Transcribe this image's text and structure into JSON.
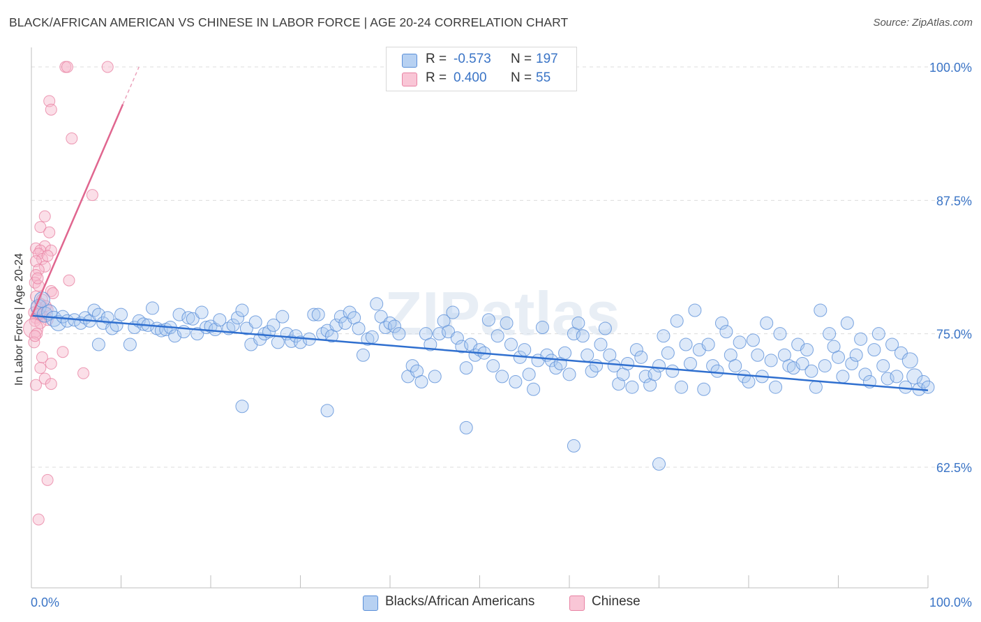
{
  "title": "BLACK/AFRICAN AMERICAN VS CHINESE IN LABOR FORCE | AGE 20-24 CORRELATION CHART",
  "source": "Source: ZipAtlas.com",
  "watermark": "ZIPatlas",
  "colors": {
    "blue_fill": "#a9c8f0",
    "blue_stroke": "#5a8fd8",
    "blue_line": "#2f6fcf",
    "pink_fill": "#f7b9cc",
    "pink_stroke": "#e882a3",
    "pink_line": "#e0668f",
    "axis_text": "#3a74c6"
  },
  "legend": {
    "blue": {
      "r_label": "R =",
      "r_value": "-0.573",
      "n_label": "N =",
      "n_value": "197"
    },
    "pink": {
      "r_label": "R =",
      "r_value": "0.400",
      "n_label": "N =",
      "n_value": "55"
    }
  },
  "bottom_legend": {
    "blue_label": "Blacks/African Americans",
    "pink_label": "Chinese"
  },
  "chart_data": {
    "type": "scatter",
    "title": "BLACK/AFRICAN AMERICAN VS CHINESE IN LABOR FORCE | AGE 20-24 CORRELATION CHART",
    "xlabel": "",
    "ylabel": "In Labor Force | Age 20-24",
    "xlim": [
      0,
      100
    ],
    "ylim": [
      50,
      100
    ],
    "x_tick_labels": [
      "0.0%",
      "100.0%"
    ],
    "y_ticks": [
      62.5,
      75.0,
      87.5,
      100.0
    ],
    "y_tick_labels": [
      "62.5%",
      "75.0%",
      "87.5%",
      "100.0%"
    ],
    "grid": true,
    "series": [
      {
        "name": "Blacks/African Americans",
        "color": "blue",
        "R": -0.573,
        "N": 197,
        "trend": {
          "x": [
            0,
            100
          ],
          "y": [
            76.7,
            69.7
          ]
        },
        "points": [
          [
            0.8,
            77.5
          ],
          [
            1.2,
            78.2
          ],
          [
            1.5,
            76.8
          ],
          [
            2.0,
            77.0
          ],
          [
            2.5,
            76.4
          ],
          [
            3.0,
            76.0
          ],
          [
            3.5,
            76.6
          ],
          [
            4.0,
            76.2
          ],
          [
            4.8,
            76.3
          ],
          [
            5.5,
            76.0
          ],
          [
            6.0,
            76.5
          ],
          [
            6.5,
            76.2
          ],
          [
            7.0,
            77.2
          ],
          [
            7.5,
            76.8
          ],
          [
            8.0,
            76.0
          ],
          [
            8.5,
            76.5
          ],
          [
            9.0,
            75.5
          ],
          [
            9.5,
            75.8
          ],
          [
            10.0,
            76.8
          ],
          [
            11.0,
            74.0
          ],
          [
            11.5,
            75.6
          ],
          [
            12.0,
            76.2
          ],
          [
            12.5,
            75.9
          ],
          [
            13.0,
            75.8
          ],
          [
            13.5,
            77.4
          ],
          [
            14.0,
            75.5
          ],
          [
            14.5,
            75.3
          ],
          [
            15.0,
            75.4
          ],
          [
            15.5,
            75.6
          ],
          [
            16.0,
            74.8
          ],
          [
            16.5,
            76.8
          ],
          [
            17.0,
            75.2
          ],
          [
            17.5,
            76.5
          ],
          [
            18.0,
            76.4
          ],
          [
            18.5,
            75.0
          ],
          [
            19.0,
            77.0
          ],
          [
            19.5,
            75.6
          ],
          [
            20.0,
            75.7
          ],
          [
            20.5,
            75.4
          ],
          [
            21.0,
            76.3
          ],
          [
            22.0,
            75.5
          ],
          [
            22.5,
            75.8
          ],
          [
            23.0,
            76.5
          ],
          [
            23.5,
            77.2
          ],
          [
            24.0,
            75.5
          ],
          [
            24.5,
            74.0
          ],
          [
            25.0,
            76.1
          ],
          [
            25.5,
            74.5
          ],
          [
            26.0,
            75.0
          ],
          [
            26.5,
            75.2
          ],
          [
            27.0,
            75.8
          ],
          [
            27.5,
            74.2
          ],
          [
            28.0,
            76.6
          ],
          [
            28.5,
            75.0
          ],
          [
            29.0,
            74.3
          ],
          [
            29.5,
            74.8
          ],
          [
            30.0,
            74.2
          ],
          [
            31.0,
            74.5
          ],
          [
            31.5,
            76.8
          ],
          [
            32.0,
            76.8
          ],
          [
            32.5,
            75.0
          ],
          [
            33.0,
            75.3
          ],
          [
            33.5,
            74.8
          ],
          [
            34.0,
            75.8
          ],
          [
            34.5,
            76.6
          ],
          [
            35.0,
            76.0
          ],
          [
            35.5,
            77.0
          ],
          [
            36.0,
            76.5
          ],
          [
            36.5,
            75.5
          ],
          [
            37.0,
            73.0
          ],
          [
            37.5,
            74.5
          ],
          [
            38.0,
            74.7
          ],
          [
            38.5,
            77.8
          ],
          [
            39.0,
            76.6
          ],
          [
            39.5,
            75.6
          ],
          [
            40.0,
            76.0
          ],
          [
            40.5,
            75.7
          ],
          [
            41.0,
            75.0
          ],
          [
            42.0,
            71.0
          ],
          [
            42.5,
            72.0
          ],
          [
            43.0,
            71.5
          ],
          [
            43.5,
            70.5
          ],
          [
            44.0,
            75.0
          ],
          [
            44.5,
            74.0
          ],
          [
            45.0,
            71.0
          ],
          [
            45.5,
            75.0
          ],
          [
            46.0,
            76.2
          ],
          [
            46.5,
            75.2
          ],
          [
            47.0,
            77.0
          ],
          [
            47.5,
            74.6
          ],
          [
            48.0,
            73.8
          ],
          [
            48.5,
            71.8
          ],
          [
            49.0,
            74.0
          ],
          [
            49.5,
            73.0
          ],
          [
            50.0,
            73.5
          ],
          [
            50.5,
            73.2
          ],
          [
            51.0,
            76.3
          ],
          [
            51.5,
            72.0
          ],
          [
            52.0,
            74.8
          ],
          [
            52.5,
            71.0
          ],
          [
            53.0,
            76.0
          ],
          [
            53.5,
            74.0
          ],
          [
            54.0,
            70.5
          ],
          [
            54.5,
            72.8
          ],
          [
            55.0,
            73.5
          ],
          [
            55.5,
            71.2
          ],
          [
            56.0,
            69.8
          ],
          [
            56.5,
            72.5
          ],
          [
            57.0,
            75.6
          ],
          [
            57.5,
            73.0
          ],
          [
            58.0,
            72.5
          ],
          [
            58.5,
            71.8
          ],
          [
            59.0,
            72.2
          ],
          [
            59.5,
            73.2
          ],
          [
            60.0,
            71.2
          ],
          [
            60.5,
            75.0
          ],
          [
            61.0,
            76.0
          ],
          [
            61.5,
            74.8
          ],
          [
            62.0,
            73.0
          ],
          [
            62.5,
            71.5
          ],
          [
            63.0,
            72.0
          ],
          [
            63.5,
            74.0
          ],
          [
            64.0,
            75.5
          ],
          [
            64.5,
            73.0
          ],
          [
            65.0,
            72.0
          ],
          [
            65.5,
            70.3
          ],
          [
            66.0,
            71.2
          ],
          [
            66.5,
            72.2
          ],
          [
            67.0,
            70.0
          ],
          [
            67.5,
            73.5
          ],
          [
            68.0,
            72.8
          ],
          [
            68.5,
            71.0
          ],
          [
            69.0,
            70.2
          ],
          [
            69.5,
            71.2
          ],
          [
            70.0,
            72.0
          ],
          [
            70.5,
            74.8
          ],
          [
            71.0,
            73.2
          ],
          [
            71.5,
            71.5
          ],
          [
            72.0,
            76.2
          ],
          [
            72.5,
            70.0
          ],
          [
            73.0,
            74.0
          ],
          [
            73.5,
            72.2
          ],
          [
            74.0,
            77.2
          ],
          [
            74.5,
            73.5
          ],
          [
            75.0,
            69.8
          ],
          [
            75.5,
            74.0
          ],
          [
            76.0,
            72.0
          ],
          [
            76.5,
            71.5
          ],
          [
            77.0,
            76.0
          ],
          [
            77.5,
            75.2
          ],
          [
            78.0,
            73.0
          ],
          [
            78.5,
            72.0
          ],
          [
            79.0,
            74.2
          ],
          [
            79.5,
            71.0
          ],
          [
            80.0,
            70.5
          ],
          [
            80.5,
            74.4
          ],
          [
            81.0,
            73.0
          ],
          [
            81.5,
            71.0
          ],
          [
            82.0,
            76.0
          ],
          [
            82.5,
            72.5
          ],
          [
            83.0,
            70.0
          ],
          [
            83.5,
            75.0
          ],
          [
            84.0,
            73.0
          ],
          [
            84.5,
            72.0
          ],
          [
            85.0,
            71.8
          ],
          [
            85.5,
            74.0
          ],
          [
            86.0,
            72.2
          ],
          [
            86.5,
            73.5
          ],
          [
            87.0,
            71.5
          ],
          [
            87.5,
            70.0
          ],
          [
            88.0,
            77.2
          ],
          [
            88.5,
            72.0
          ],
          [
            89.0,
            75.0
          ],
          [
            89.5,
            73.8
          ],
          [
            90.0,
            72.8
          ],
          [
            90.5,
            71.0
          ],
          [
            91.0,
            76.0
          ],
          [
            91.5,
            72.2
          ],
          [
            92.0,
            73.0
          ],
          [
            92.5,
            74.5
          ],
          [
            93.0,
            71.2
          ],
          [
            93.5,
            70.5
          ],
          [
            94.0,
            73.5
          ],
          [
            94.5,
            75.0
          ],
          [
            95.0,
            72.0
          ],
          [
            95.5,
            70.8
          ],
          [
            96.0,
            74.0
          ],
          [
            96.5,
            71.0
          ],
          [
            97.0,
            73.2
          ],
          [
            97.5,
            70.0
          ],
          [
            98.0,
            72.5
          ],
          [
            98.5,
            71.0
          ],
          [
            99.0,
            69.8
          ],
          [
            99.5,
            70.5
          ],
          [
            100.0,
            70.0
          ],
          [
            7.5,
            74.0
          ],
          [
            23.5,
            68.2
          ],
          [
            33.0,
            67.8
          ],
          [
            48.5,
            66.2
          ],
          [
            60.5,
            64.5
          ],
          [
            70.0,
            62.8
          ]
        ]
      },
      {
        "name": "Chinese",
        "color": "pink",
        "R": 0.4,
        "N": 55,
        "trend": {
          "x": [
            0,
            10.2
          ],
          "y": [
            76.6,
            96.5
          ]
        },
        "trend_dashed": {
          "x": [
            10.2,
            12.0
          ],
          "y": [
            96.5,
            100.0
          ]
        },
        "points": [
          [
            3.8,
            100.0
          ],
          [
            4.0,
            100.0
          ],
          [
            8.5,
            100.0
          ],
          [
            2.0,
            96.8
          ],
          [
            2.2,
            96.0
          ],
          [
            4.5,
            93.3
          ],
          [
            6.8,
            88.0
          ],
          [
            1.0,
            85.0
          ],
          [
            2.0,
            84.5
          ],
          [
            1.5,
            83.2
          ],
          [
            0.5,
            83.0
          ],
          [
            1.0,
            82.8
          ],
          [
            2.2,
            82.8
          ],
          [
            0.8,
            82.5
          ],
          [
            1.2,
            82.0
          ],
          [
            0.5,
            81.8
          ],
          [
            1.5,
            81.3
          ],
          [
            0.8,
            81.0
          ],
          [
            0.5,
            80.5
          ],
          [
            4.2,
            80.0
          ],
          [
            0.4,
            79.8
          ],
          [
            0.8,
            79.5
          ],
          [
            2.2,
            79.0
          ],
          [
            0.5,
            78.5
          ],
          [
            1.2,
            78.2
          ],
          [
            1.0,
            77.8
          ],
          [
            0.6,
            77.5
          ],
          [
            1.8,
            77.3
          ],
          [
            0.3,
            77.0
          ],
          [
            0.8,
            76.8
          ],
          [
            1.3,
            76.6
          ],
          [
            0.5,
            76.5
          ],
          [
            1.8,
            76.3
          ],
          [
            0.4,
            76.2
          ],
          [
            1.0,
            76.0
          ],
          [
            0.2,
            75.5
          ],
          [
            0.6,
            75.0
          ],
          [
            0.3,
            74.2
          ],
          [
            3.5,
            73.3
          ],
          [
            1.2,
            72.8
          ],
          [
            2.2,
            72.2
          ],
          [
            1.0,
            71.8
          ],
          [
            5.8,
            71.3
          ],
          [
            1.5,
            70.8
          ],
          [
            2.2,
            70.3
          ],
          [
            0.5,
            70.2
          ],
          [
            1.8,
            61.3
          ],
          [
            0.8,
            57.6
          ],
          [
            1.5,
            86.0
          ],
          [
            0.7,
            80.2
          ],
          [
            1.8,
            82.3
          ],
          [
            2.4,
            78.8
          ],
          [
            0.9,
            76.9
          ],
          [
            1.6,
            77.6
          ],
          [
            0.4,
            74.8
          ]
        ]
      }
    ]
  }
}
